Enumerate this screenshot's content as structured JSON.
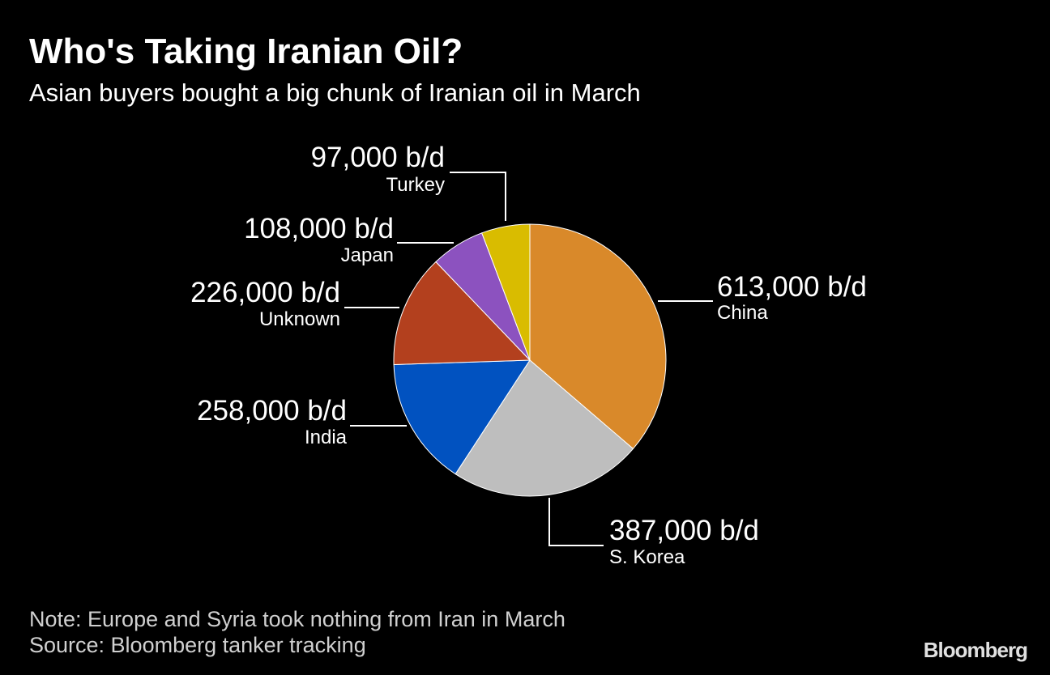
{
  "chart_data": {
    "type": "pie",
    "title": "Who's Taking Iranian Oil?",
    "subtitle": "Asian buyers bought a big chunk of Iranian oil in March",
    "categories": [
      "China",
      "S. Korea",
      "India",
      "Unknown",
      "Japan",
      "Turkey"
    ],
    "values": [
      613000,
      387000,
      258000,
      226000,
      108000,
      97000
    ],
    "value_labels": [
      "613,000 b/d",
      "387,000 b/d",
      "258,000 b/d",
      "226,000 b/d",
      "108,000 b/d",
      "97,000 b/d"
    ],
    "colors": [
      "#d9892a",
      "#bebebe",
      "#0152c0",
      "#b3401e",
      "#8c52bf",
      "#d9bc00"
    ],
    "note": "Note: Europe and Syria took nothing from Iran in March",
    "source": "Source: Bloomberg tanker tracking",
    "logo": "Bloomberg"
  }
}
